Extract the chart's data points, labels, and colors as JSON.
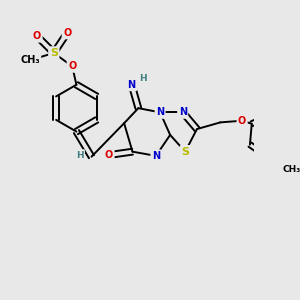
{
  "bg_color": "#e8e8e8",
  "figsize": [
    3.0,
    3.0
  ],
  "dpi": 100,
  "colors": {
    "C": "#000000",
    "N": "#0000cc",
    "O": "#dd0000",
    "S": "#bbbb00",
    "H": "#408080",
    "bond": "#000000"
  },
  "fs": 7.0
}
